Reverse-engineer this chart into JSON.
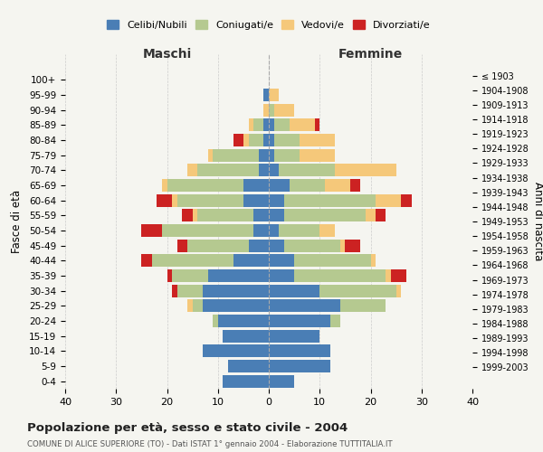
{
  "age_groups": [
    "0-4",
    "5-9",
    "10-14",
    "15-19",
    "20-24",
    "25-29",
    "30-34",
    "35-39",
    "40-44",
    "45-49",
    "50-54",
    "55-59",
    "60-64",
    "65-69",
    "70-74",
    "75-79",
    "80-84",
    "85-89",
    "90-94",
    "95-99",
    "100+"
  ],
  "birth_years": [
    "1999-2003",
    "1994-1998",
    "1989-1993",
    "1984-1988",
    "1979-1983",
    "1974-1978",
    "1969-1973",
    "1964-1968",
    "1959-1963",
    "1954-1958",
    "1949-1953",
    "1944-1948",
    "1939-1943",
    "1934-1938",
    "1929-1933",
    "1924-1928",
    "1919-1923",
    "1914-1918",
    "1909-1913",
    "1904-1908",
    "≤ 1903"
  ],
  "male": {
    "celibi": [
      9,
      8,
      13,
      9,
      10,
      13,
      13,
      12,
      7,
      4,
      3,
      3,
      5,
      5,
      2,
      2,
      1,
      1,
      0,
      1,
      0
    ],
    "coniugati": [
      0,
      0,
      0,
      0,
      1,
      2,
      5,
      7,
      16,
      12,
      18,
      11,
      13,
      15,
      12,
      9,
      3,
      2,
      0,
      0,
      0
    ],
    "vedovi": [
      0,
      0,
      0,
      0,
      0,
      1,
      0,
      0,
      0,
      0,
      0,
      1,
      1,
      1,
      2,
      1,
      1,
      1,
      1,
      0,
      0
    ],
    "divorziati": [
      0,
      0,
      0,
      0,
      0,
      0,
      1,
      1,
      2,
      2,
      4,
      2,
      3,
      0,
      0,
      0,
      2,
      0,
      0,
      0,
      0
    ]
  },
  "female": {
    "nubili": [
      5,
      12,
      12,
      10,
      12,
      14,
      10,
      5,
      5,
      3,
      2,
      3,
      3,
      4,
      2,
      1,
      1,
      1,
      0,
      0,
      0
    ],
    "coniugate": [
      0,
      0,
      0,
      0,
      2,
      9,
      15,
      18,
      15,
      11,
      8,
      16,
      18,
      7,
      11,
      5,
      5,
      3,
      1,
      0,
      0
    ],
    "vedove": [
      0,
      0,
      0,
      0,
      0,
      0,
      1,
      1,
      1,
      1,
      3,
      2,
      5,
      5,
      12,
      7,
      7,
      5,
      4,
      2,
      0
    ],
    "divorziate": [
      0,
      0,
      0,
      0,
      0,
      0,
      0,
      3,
      0,
      3,
      0,
      2,
      2,
      2,
      0,
      0,
      0,
      1,
      0,
      0,
      0
    ]
  },
  "colors": {
    "celibi": "#4a7eb5",
    "coniugati": "#b5c990",
    "vedovi": "#f5c87a",
    "divorziati": "#cc2222"
  },
  "xlim": 40,
  "title": "Popolazione per età, sesso e stato civile - 2004",
  "subtitle": "COMUNE DI ALICE SUPERIORE (TO) - Dati ISTAT 1° gennaio 2004 - Elaborazione TUTTITALIA.IT",
  "ylabel_left": "Fasce di età",
  "ylabel_right": "Anni di nascita",
  "xlabel_left": "Maschi",
  "xlabel_right": "Femmine",
  "bg_color": "#f5f5f0",
  "grid_color": "#cccccc"
}
